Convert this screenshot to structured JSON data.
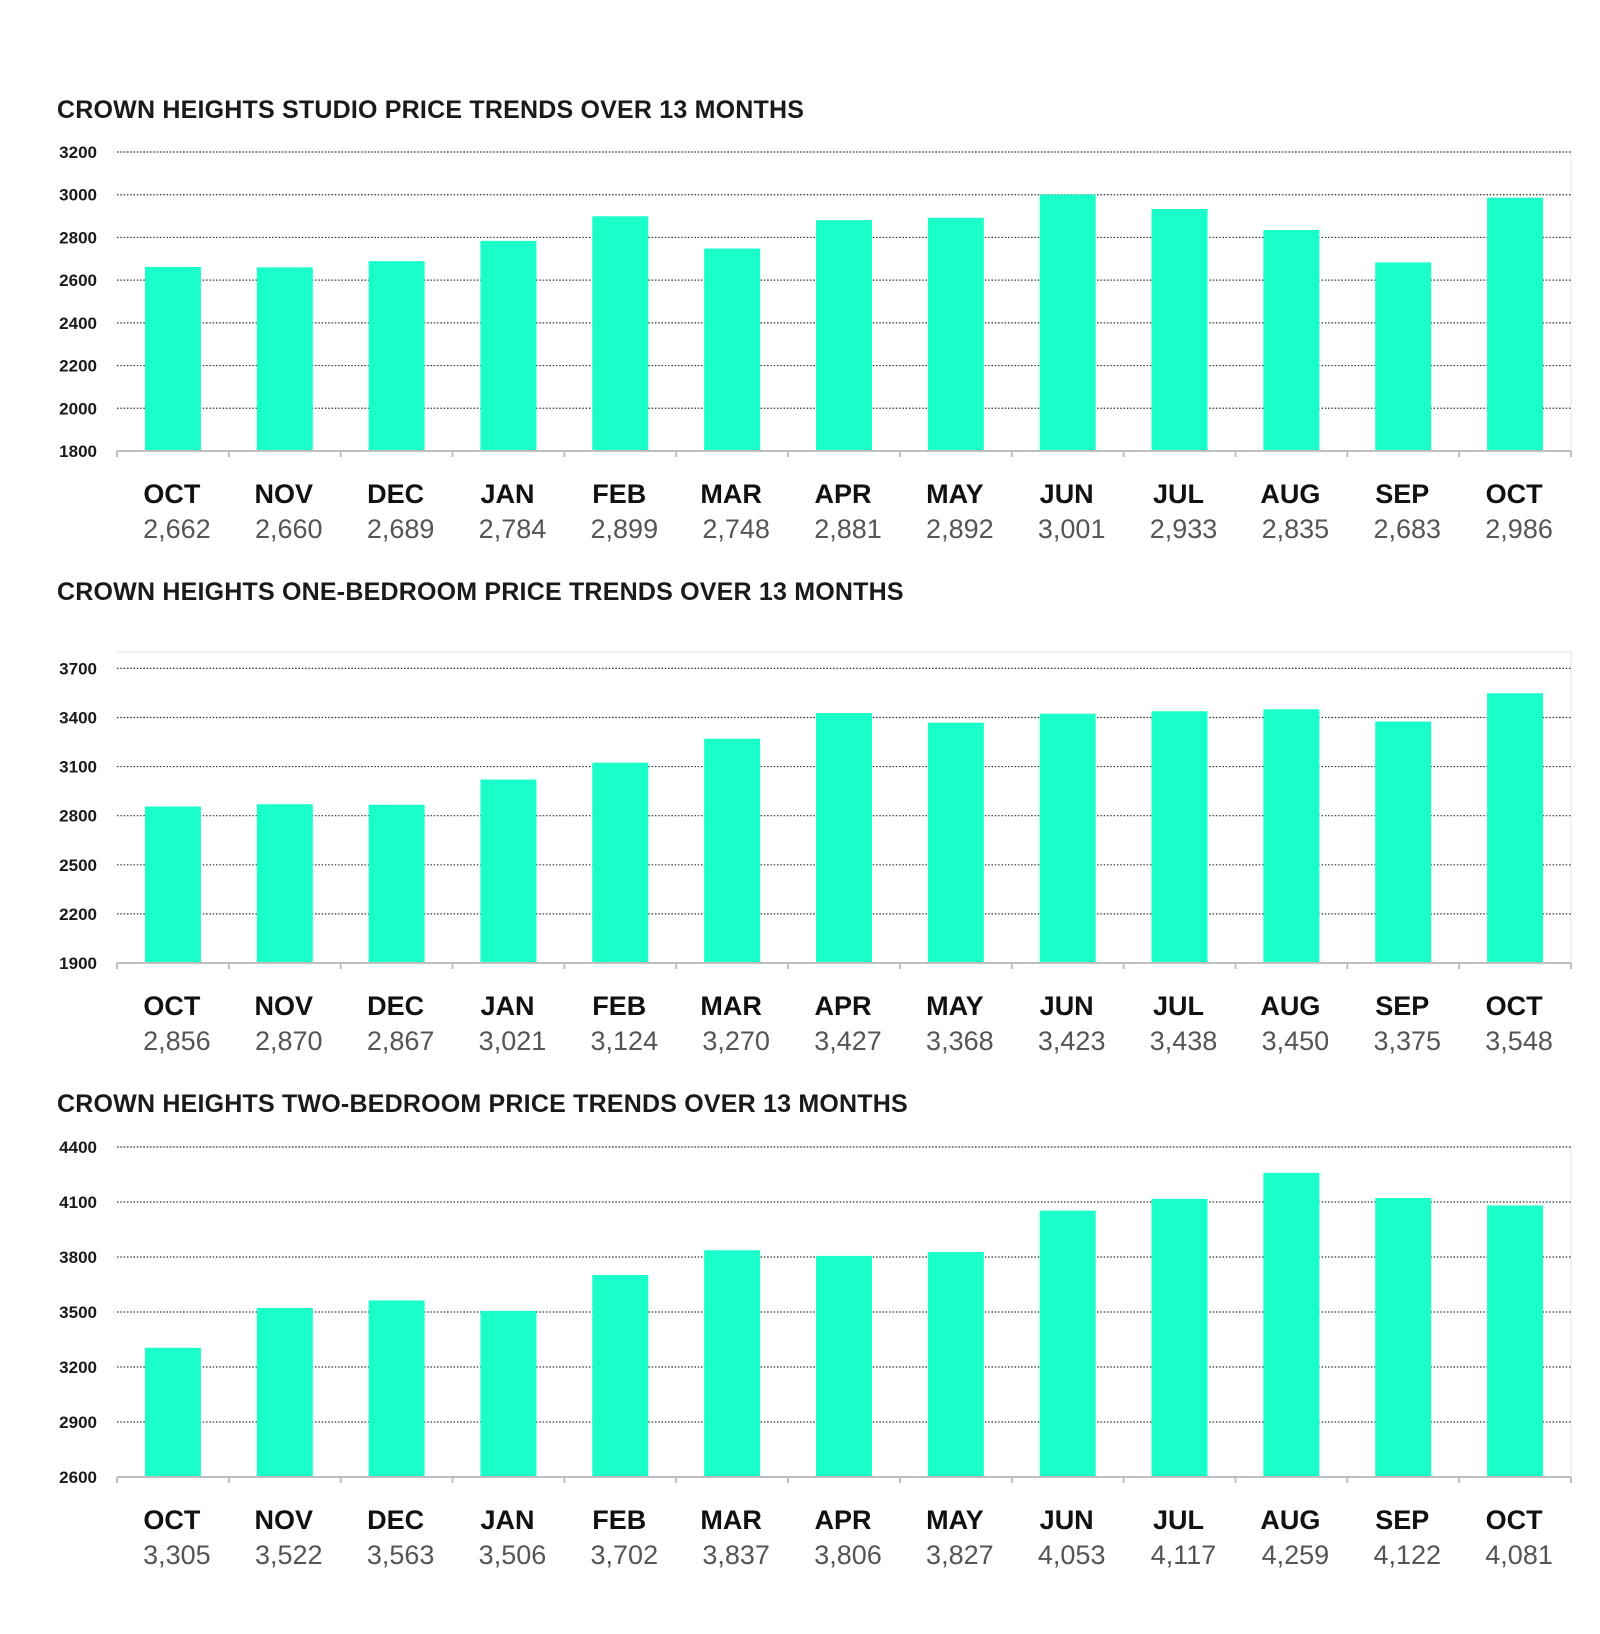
{
  "colors": {
    "bar": "#1affc9",
    "grid": "#333333",
    "axis": "#bfbfbf",
    "frame": "#e4e4e4"
  },
  "chart_data": [
    {
      "type": "bar",
      "title": "CROWN HEIGHTS STUDIO PRICE TRENDS OVER 13 MONTHS",
      "categories": [
        "OCT",
        "NOV",
        "DEC",
        "JAN",
        "FEB",
        "MAR",
        "APR",
        "MAY",
        "JUN",
        "JUL",
        "AUG",
        "SEP",
        "OCT"
      ],
      "values": [
        2662,
        2660,
        2689,
        2784,
        2899,
        2748,
        2881,
        2892,
        3001,
        2933,
        2835,
        2683,
        2986
      ],
      "value_labels": [
        "2,662",
        "2,660",
        "2,689",
        "2,784",
        "2,899",
        "2,748",
        "2,881",
        "2,892",
        "3,001",
        "2,933",
        "2,835",
        "2,683",
        "2,986"
      ],
      "yticks": [
        1800,
        2000,
        2200,
        2400,
        2600,
        2800,
        3000,
        3200
      ],
      "ylim": [
        1800,
        3200
      ],
      "grid": true
    },
    {
      "type": "bar",
      "title": "CROWN HEIGHTS ONE-BEDROOM PRICE TRENDS OVER 13 MONTHS",
      "categories": [
        "OCT",
        "NOV",
        "DEC",
        "JAN",
        "FEB",
        "MAR",
        "APR",
        "MAY",
        "JUN",
        "JUL",
        "AUG",
        "SEP",
        "OCT"
      ],
      "values": [
        2856,
        2870,
        2867,
        3021,
        3124,
        3270,
        3427,
        3368,
        3423,
        3438,
        3450,
        3375,
        3548
      ],
      "value_labels": [
        "2,856",
        "2,870",
        "2,867",
        "3,021",
        "3,124",
        "3,270",
        "3,427",
        "3,368",
        "3,423",
        "3,438",
        "3,450",
        "3,375",
        "3,548"
      ],
      "yticks": [
        1900,
        2200,
        2500,
        2800,
        3100,
        3400,
        3700
      ],
      "ylim": [
        1900,
        3800
      ],
      "grid": true
    },
    {
      "type": "bar",
      "title": "CROWN HEIGHTS TWO-BEDROOM PRICE TRENDS OVER 13 MONTHS",
      "categories": [
        "OCT",
        "NOV",
        "DEC",
        "JAN",
        "FEB",
        "MAR",
        "APR",
        "MAY",
        "JUN",
        "JUL",
        "AUG",
        "SEP",
        "OCT"
      ],
      "values": [
        3305,
        3522,
        3563,
        3506,
        3702,
        3837,
        3806,
        3827,
        4053,
        4117,
        4259,
        4122,
        4081
      ],
      "value_labels": [
        "3,305",
        "3,522",
        "3,563",
        "3,506",
        "3,702",
        "3,837",
        "3,806",
        "3,827",
        "4,053",
        "4,117",
        "4,259",
        "4,122",
        "4,081"
      ],
      "yticks": [
        2600,
        2900,
        3200,
        3500,
        3800,
        4100,
        4400
      ],
      "ylim": [
        2600,
        4400
      ],
      "grid": true
    }
  ]
}
